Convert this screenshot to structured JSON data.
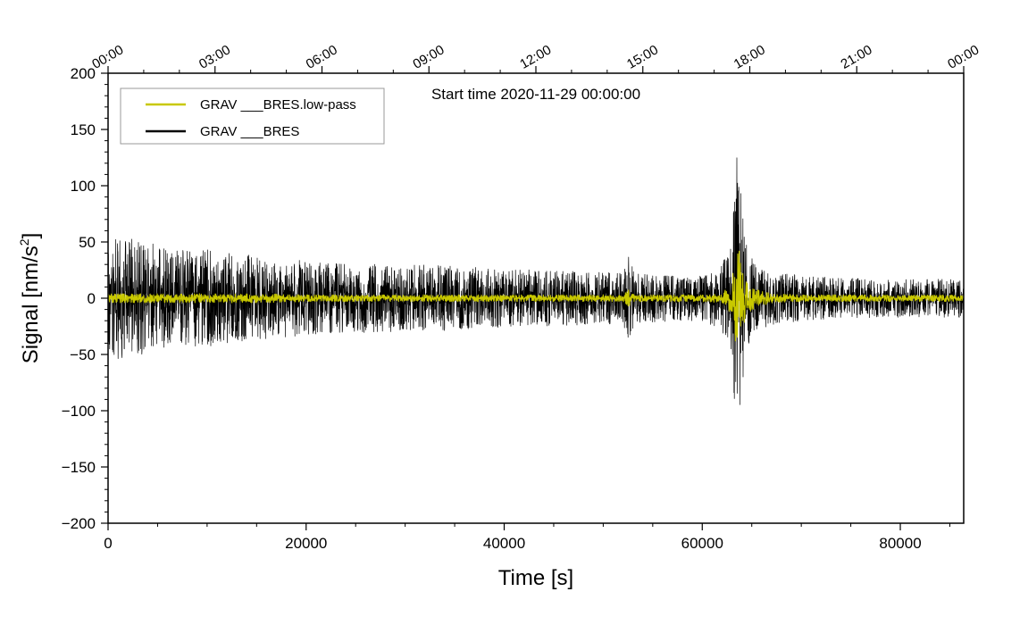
{
  "chart_data": {
    "type": "line",
    "annotation": "Start time 2020-11-29 00:00:00",
    "xlabel": "Time [s]",
    "ylabel_main": "Signal [nm/s",
    "ylabel_sup": "2",
    "ylabel_end": "]",
    "xlim": [
      0,
      86400
    ],
    "ylim": [
      -200,
      200
    ],
    "x_ticks": [
      0,
      20000,
      40000,
      60000,
      80000
    ],
    "x_tick_labels": [
      "0",
      "20000",
      "40000",
      "60000",
      "80000"
    ],
    "y_ticks": [
      -200,
      -150,
      -100,
      -50,
      0,
      50,
      100,
      150,
      200
    ],
    "y_tick_labels": [
      "−200",
      "−150",
      "−100",
      "−50",
      "0",
      "50",
      "100",
      "150",
      "200"
    ],
    "top_axis_ticks_s": [
      0,
      10800,
      21600,
      32400,
      43200,
      54000,
      64800,
      75600,
      86400
    ],
    "top_axis_labels": [
      "00:00",
      "03:00",
      "06:00",
      "09:00",
      "12:00",
      "15:00",
      "18:00",
      "21:00",
      "00:00"
    ],
    "legend_position": "top-left",
    "series": [
      {
        "name": "GRAV ___BRES.low-pass",
        "color": "#c8c800",
        "envelope_time_s": [
          0,
          2000,
          4000,
          6000,
          8000,
          10000,
          12000,
          16000,
          20000,
          24000,
          28000,
          32000,
          36000,
          40000,
          44000,
          48000,
          50000,
          52000,
          52600,
          53200,
          56000,
          60000,
          62000,
          63000,
          63500,
          64000,
          64500,
          65500,
          67000,
          70000,
          74000,
          78000,
          82000,
          86400
        ],
        "envelope_amp": [
          4,
          4,
          4,
          4,
          4,
          4,
          4,
          4,
          3,
          3,
          3,
          3,
          3,
          3,
          3,
          3,
          3,
          3,
          8,
          3,
          3,
          3,
          4,
          15,
          55,
          30,
          15,
          8,
          4,
          3,
          3,
          3,
          3,
          3
        ]
      },
      {
        "name": "GRAV ___BRES",
        "color": "#000000",
        "envelope_time_s": [
          0,
          1000,
          2000,
          4000,
          6000,
          8000,
          10000,
          12000,
          16000,
          20000,
          24000,
          28000,
          32000,
          36000,
          40000,
          44000,
          48000,
          50000,
          52000,
          52600,
          53200,
          56000,
          60000,
          62000,
          63000,
          63500,
          64000,
          64500,
          65500,
          67000,
          70000,
          74000,
          78000,
          82000,
          86400
        ],
        "envelope_amp": [
          45,
          55,
          55,
          50,
          45,
          42,
          44,
          40,
          37,
          33,
          31,
          30,
          30,
          28,
          26,
          25,
          24,
          23,
          23,
          38,
          22,
          21,
          20,
          30,
          60,
          130,
          90,
          45,
          30,
          25,
          20,
          18,
          17,
          17,
          17
        ]
      }
    ]
  }
}
